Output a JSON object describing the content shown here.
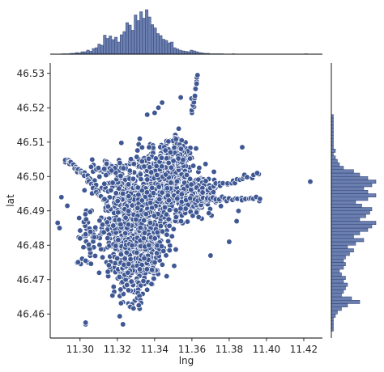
{
  "chart_data": {
    "type": "scatter",
    "title": "",
    "xlabel": "lng",
    "ylabel": "lat",
    "xlim": [
      11.284,
      11.43
    ],
    "ylim": [
      46.453,
      46.533
    ],
    "x_ticks": [
      "11.30",
      "11.32",
      "11.34",
      "11.36",
      "11.38",
      "11.40",
      "11.42"
    ],
    "y_ticks": [
      "46.46",
      "46.47",
      "46.48",
      "46.49",
      "46.50",
      "46.51",
      "46.52",
      "46.53"
    ],
    "marginal_top": "histogram of lng",
    "marginal_right": "histogram of lat",
    "grid": false,
    "legend": "none",
    "colors": {
      "point_fill": "#3f5894",
      "point_edge": "#ffffff",
      "bar_fill": "#6a7fb0",
      "bar_edge": "#2f3f6e"
    },
    "clusters": [
      {
        "cx": 11.325,
        "cy": 46.4885,
        "sx": 0.0065,
        "sy": 0.0065,
        "n": 520
      },
      {
        "cx": 11.345,
        "cy": 46.497,
        "sx": 0.0085,
        "sy": 0.0055,
        "n": 560
      },
      {
        "cx": 11.327,
        "cy": 46.474,
        "sx": 0.0045,
        "sy": 0.005,
        "n": 220
      },
      {
        "cx": 11.338,
        "cy": 46.481,
        "sx": 0.0045,
        "sy": 0.0055,
        "n": 170
      },
      {
        "cx": 11.363,
        "cy": 46.494,
        "sx": 0.0045,
        "sy": 0.0025,
        "n": 170
      },
      {
        "cx": 11.351,
        "cy": 46.5065,
        "sx": 0.0045,
        "sy": 0.0035,
        "n": 90
      },
      {
        "cx": 11.316,
        "cy": 46.502,
        "sx": 0.005,
        "sy": 0.0015,
        "n": 55
      },
      {
        "cx": 11.305,
        "cy": 46.482,
        "sx": 0.0035,
        "sy": 0.0045,
        "n": 45
      }
    ],
    "chains": [
      {
        "from": [
          11.292,
          46.505
        ],
        "to": [
          11.302,
          46.501
        ],
        "n": 22
      },
      {
        "from": [
          11.302,
          46.501
        ],
        "to": [
          11.314,
          46.492
        ],
        "n": 22
      },
      {
        "from": [
          11.36,
          46.5185
        ],
        "to": [
          11.363,
          46.529
        ],
        "n": 14
      },
      {
        "from": [
          11.365,
          46.496
        ],
        "to": [
          11.395,
          46.5005
        ],
        "n": 26
      },
      {
        "from": [
          11.36,
          46.4935
        ],
        "to": [
          11.396,
          46.4935
        ],
        "n": 26
      },
      {
        "from": [
          11.331,
          46.47
        ],
        "to": [
          11.332,
          46.463
        ],
        "n": 9
      }
    ],
    "outliers": [
      [
        11.4235,
        46.4985
      ],
      [
        11.3965,
        46.4935
      ],
      [
        11.395,
        46.501
      ],
      [
        11.387,
        46.5085
      ],
      [
        11.385,
        46.49
      ],
      [
        11.384,
        46.487
      ],
      [
        11.38,
        46.481
      ],
      [
        11.37,
        46.477
      ],
      [
        11.303,
        46.457
      ],
      [
        11.303,
        46.4575
      ],
      [
        11.323,
        46.457
      ],
      [
        11.288,
        46.4865
      ],
      [
        11.289,
        46.485
      ],
      [
        11.29,
        46.494
      ],
      [
        11.3,
        46.482
      ],
      [
        11.303,
        46.4755
      ],
      [
        11.336,
        46.518
      ],
      [
        11.34,
        46.5185
      ],
      [
        11.342,
        46.52
      ],
      [
        11.344,
        46.5215
      ],
      [
        11.354,
        46.523
      ],
      [
        11.363,
        46.5295
      ],
      [
        11.3625,
        46.527
      ],
      [
        11.3315,
        46.4625
      ],
      [
        11.337,
        46.5085
      ],
      [
        11.3505,
        46.474
      ],
      [
        11.348,
        46.4785
      ],
      [
        11.332,
        46.511
      ]
    ],
    "marginal_x": {
      "edges_start": 11.29,
      "bin_width": 0.0015,
      "counts": [
        1,
        1,
        1,
        2,
        2,
        4,
        3,
        6,
        6,
        10,
        7,
        14,
        16,
        25,
        22,
        47,
        39,
        45,
        36,
        42,
        30,
        48,
        56,
        78,
        72,
        59,
        97,
        83,
        105,
        89,
        110,
        92,
        73,
        65,
        51,
        46,
        37,
        34,
        28,
        30,
        16,
        13,
        10,
        8,
        7,
        6,
        10,
        8,
        6,
        4,
        3,
        2,
        2,
        1,
        1,
        1,
        1,
        1,
        0,
        0,
        0,
        1,
        0,
        0,
        0,
        0,
        0,
        0,
        0,
        0,
        0,
        0,
        0,
        0,
        0,
        0,
        0,
        0,
        0,
        0,
        0,
        0,
        0,
        0,
        0,
        0,
        0,
        1,
        0,
        0
      ]
    },
    "marginal_y": {
      "edges_start": 46.455,
      "bin_width": 0.001,
      "counts": [
        1,
        1,
        1,
        1,
        2,
        3,
        5,
        8,
        14,
        10,
        5,
        6,
        7,
        8,
        6,
        7,
        5,
        4,
        6,
        7,
        6,
        7,
        9,
        11,
        8,
        12,
        16,
        11,
        14,
        18,
        20,
        22,
        14,
        17,
        19,
        20,
        15,
        12,
        18,
        22,
        18,
        16,
        20,
        22,
        18,
        14,
        11,
        6,
        4,
        3,
        2,
        1,
        2,
        1,
        1,
        1,
        1,
        1,
        1,
        1,
        1,
        1,
        1,
        0,
        0,
        0,
        0,
        0,
        0,
        0,
        0,
        0,
        0,
        0,
        0,
        0
      ]
    }
  }
}
